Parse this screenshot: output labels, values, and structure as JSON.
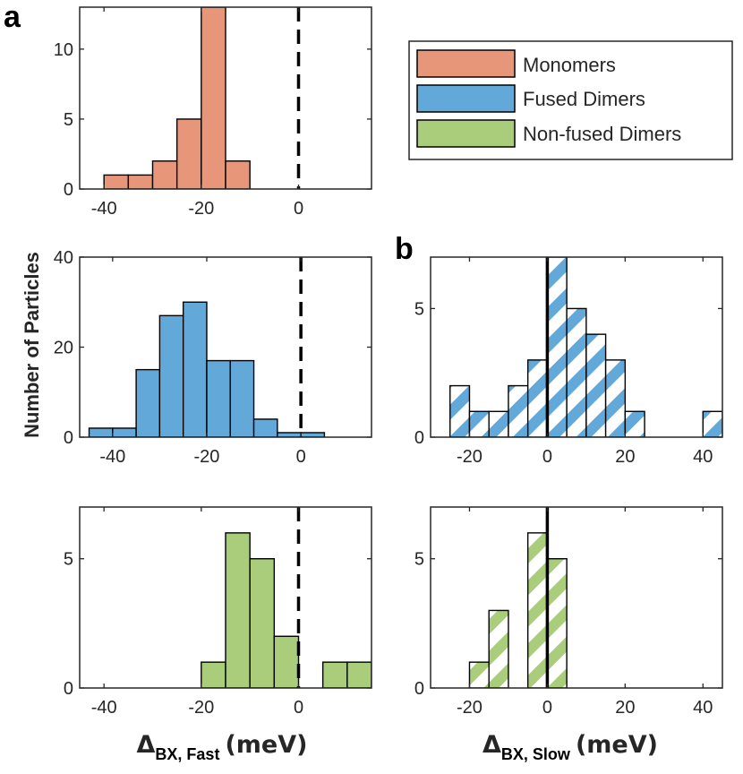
{
  "figure": {
    "panel_a_label": "a",
    "panel_b_label": "b",
    "ylabel": "Number of Particles",
    "xlabel_fast": {
      "delta": "Δ",
      "sub": "BX, Fast",
      "unit": "(meV)"
    },
    "xlabel_slow": {
      "delta": "Δ",
      "sub": "BX, Slow",
      "unit": "(meV)"
    }
  },
  "legend": {
    "items": [
      {
        "label": "Monomers",
        "color": "#E8967A"
      },
      {
        "label": "Fused Dimers",
        "color": "#62A8D9"
      },
      {
        "label": "Non-fused Dimers",
        "color": "#A9CD7B"
      }
    ]
  },
  "chart_data": [
    {
      "id": "fast-monomers",
      "type": "bar",
      "style": "solid",
      "color": "#E8967A",
      "series": "Monomers",
      "bin_width": 5,
      "bins": [
        [
          -40,
          1
        ],
        [
          -35,
          1
        ],
        [
          -30,
          2
        ],
        [
          -25,
          5
        ],
        [
          -20,
          13
        ],
        [
          -15,
          2
        ]
      ],
      "xlim": [
        -45,
        15
      ],
      "ylim": [
        0,
        13
      ],
      "xticks": [
        -40,
        -20,
        0
      ],
      "yticks": [
        0,
        5,
        10
      ],
      "zero_line": "dashed"
    },
    {
      "id": "fast-fused",
      "type": "bar",
      "style": "solid",
      "color": "#62A8D9",
      "series": "Fused Dimers",
      "bin_width": 5,
      "bins": [
        [
          -45,
          2
        ],
        [
          -40,
          2
        ],
        [
          -35,
          15
        ],
        [
          -30,
          27
        ],
        [
          -25,
          30
        ],
        [
          -20,
          17
        ],
        [
          -15,
          17
        ],
        [
          -10,
          4
        ],
        [
          -5,
          1
        ],
        [
          0,
          1
        ]
      ],
      "xlim": [
        -47,
        15
      ],
      "ylim": [
        0,
        40
      ],
      "xticks": [
        -40,
        -20,
        0
      ],
      "yticks": [
        0,
        20,
        40
      ],
      "zero_line": "dashed"
    },
    {
      "id": "fast-nonfused",
      "type": "bar",
      "style": "solid",
      "color": "#A9CD7B",
      "series": "Non-fused Dimers",
      "bin_width": 5,
      "bins": [
        [
          -20,
          1
        ],
        [
          -15,
          6
        ],
        [
          -10,
          5
        ],
        [
          -5,
          2
        ],
        [
          5,
          1
        ],
        [
          10,
          1
        ]
      ],
      "xlim": [
        -45,
        15
      ],
      "ylim": [
        0,
        7
      ],
      "xticks": [
        -40,
        -20,
        0
      ],
      "yticks": [
        0,
        5
      ],
      "zero_line": "dashed"
    },
    {
      "id": "slow-fused",
      "type": "bar",
      "style": "hatched",
      "color": "#62A8D9",
      "series": "Fused Dimers",
      "bin_width": 5,
      "bins": [
        [
          -25,
          2
        ],
        [
          -20,
          1
        ],
        [
          -15,
          1
        ],
        [
          -10,
          2
        ],
        [
          -5,
          3
        ],
        [
          0,
          7
        ],
        [
          5,
          5
        ],
        [
          10,
          4
        ],
        [
          15,
          3
        ],
        [
          20,
          1
        ],
        [
          40,
          1
        ]
      ],
      "xlim": [
        -30,
        45
      ],
      "ylim": [
        0,
        7
      ],
      "xticks": [
        -20,
        0,
        20,
        40
      ],
      "yticks": [
        0,
        5
      ],
      "zero_line": "solid"
    },
    {
      "id": "slow-nonfused",
      "type": "bar",
      "style": "hatched",
      "color": "#A9CD7B",
      "series": "Non-fused Dimers",
      "bin_width": 5,
      "bins": [
        [
          -20,
          1
        ],
        [
          -15,
          3
        ],
        [
          -5,
          6
        ],
        [
          0,
          5
        ]
      ],
      "xlim": [
        -30,
        45
      ],
      "ylim": [
        0,
        7
      ],
      "xticks": [
        -20,
        0,
        20,
        40
      ],
      "yticks": [
        0,
        5
      ],
      "zero_line": "solid"
    }
  ]
}
